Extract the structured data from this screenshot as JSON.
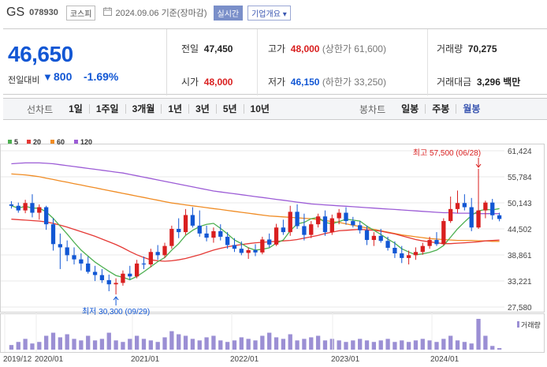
{
  "header": {
    "stock_name": "GS",
    "stock_code": "078930",
    "market_badge": "코스피",
    "date_text": "2024.09.06 기준(장마감)",
    "realtime_button": "실시간",
    "corp_overview_button": "기업개요 ▾"
  },
  "quote": {
    "price": "46,650",
    "change_label": "전일대비",
    "change_arrow": "▼",
    "change_value": "800",
    "change_percent": "-1.69%",
    "prev_close_label": "전일",
    "prev_close": "47,450",
    "high_label": "고가",
    "high": "48,000",
    "upper_limit": "(상한가 61,600)",
    "volume_label": "거래량",
    "volume": "70,275",
    "open_label": "시가",
    "open": "48,000",
    "low_label": "저가",
    "low": "46,150",
    "lower_limit": "(하한가 33,250)",
    "amount_label": "거래대금",
    "amount": "3,296 백만"
  },
  "period_bar": {
    "line_label": "선차트",
    "line_periods": [
      "1일",
      "1주일",
      "3개월",
      "1년",
      "3년",
      "5년",
      "10년"
    ],
    "candle_label": "봉차트",
    "candle_periods": [
      "일봉",
      "주봉",
      "월봉"
    ],
    "active_candle": "월봉"
  },
  "colors": {
    "up": "#d91f1f",
    "down": "#1257d4",
    "ma5": "#4caf50",
    "ma20": "#e53935",
    "ma60": "#f08c24",
    "ma120": "#9c5cd6",
    "volume": "#9b8fd4"
  },
  "chart_data": {
    "type": "candlestick",
    "legend": [
      "5",
      "20",
      "60",
      "120"
    ],
    "y_ticks": [
      "61,424",
      "55,784",
      "50,143",
      "44,502",
      "38,861",
      "33,221",
      "27,580"
    ],
    "y_range": [
      27580,
      61424
    ],
    "x_ticks": [
      "2019/12",
      "2020/01",
      "2021/01",
      "2022/01",
      "2023/01",
      "2024/01"
    ],
    "volume_label": "거래량",
    "annotations": {
      "high_text": "최고 57,500 (06/28)",
      "low_text": "최저 30,300 (09/29)"
    },
    "candles": [
      [
        49800,
        50500,
        48900,
        49500
      ],
      [
        49500,
        50200,
        48000,
        48500
      ],
      [
        48500,
        50800,
        47900,
        50100
      ],
      [
        50100,
        52000,
        47000,
        48000
      ],
      [
        48000,
        49800,
        46500,
        49200
      ],
      [
        49200,
        49500,
        44300,
        45500
      ],
      [
        45500,
        46800,
        39800,
        41200
      ],
      [
        41200,
        43500,
        35800,
        40500
      ],
      [
        40500,
        42000,
        37500,
        38800
      ],
      [
        38800,
        40500,
        36800,
        37900
      ],
      [
        37900,
        39200,
        35500,
        37000
      ],
      [
        37000,
        38500,
        34800,
        35200
      ],
      [
        35200,
        36500,
        33200,
        34500
      ],
      [
        34500,
        35800,
        32800,
        33400
      ],
      [
        33400,
        34600,
        31000,
        32500
      ],
      [
        32500,
        33800,
        30300,
        32800
      ],
      [
        32800,
        35500,
        32200,
        34800
      ],
      [
        34800,
        36500,
        33500,
        34200
      ],
      [
        34200,
        37800,
        33800,
        37000
      ],
      [
        37000,
        38500,
        35800,
        36800
      ],
      [
        36800,
        40200,
        36200,
        39500
      ],
      [
        39500,
        41000,
        37800,
        38800
      ],
      [
        38800,
        41500,
        38200,
        40800
      ],
      [
        40800,
        45200,
        40200,
        44500
      ],
      [
        44500,
        46800,
        42500,
        43800
      ],
      [
        43800,
        48800,
        43200,
        47500
      ],
      [
        47500,
        49200,
        44800,
        45200
      ],
      [
        45200,
        48500,
        42800,
        43500
      ],
      [
        43500,
        45200,
        41800,
        42600
      ],
      [
        42600,
        44800,
        41500,
        44000
      ],
      [
        44000,
        45500,
        42000,
        42800
      ],
      [
        42800,
        43800,
        40200,
        41000
      ],
      [
        41000,
        42500,
        39500,
        40200
      ],
      [
        40200,
        41800,
        38800,
        39300
      ],
      [
        39300,
        40500,
        38000,
        39900
      ],
      [
        39900,
        41200,
        38600,
        39400
      ],
      [
        39400,
        42800,
        39000,
        42200
      ],
      [
        42200,
        43500,
        40500,
        41100
      ],
      [
        41100,
        45600,
        40800,
        44800
      ],
      [
        44800,
        46500,
        43200,
        43800
      ],
      [
        43800,
        49500,
        43000,
        48200
      ],
      [
        48200,
        49800,
        44500,
        45100
      ],
      [
        45100,
        47800,
        42000,
        43200
      ],
      [
        43200,
        46200,
        42500,
        45500
      ],
      [
        45500,
        47800,
        44800,
        47200
      ],
      [
        47200,
        48500,
        43000,
        43800
      ],
      [
        43800,
        47600,
        43200,
        46800
      ],
      [
        46800,
        48800,
        45500,
        48000
      ],
      [
        48000,
        49200,
        45400,
        46200
      ],
      [
        46200,
        47100,
        44800,
        45300
      ],
      [
        45300,
        46200,
        43500,
        44200
      ],
      [
        44200,
        45200,
        41000,
        42100
      ],
      [
        42100,
        43800,
        40800,
        43000
      ],
      [
        43000,
        44500,
        41500,
        41900
      ],
      [
        41900,
        42800,
        39800,
        40400
      ],
      [
        40400,
        41800,
        38200,
        39200
      ],
      [
        39200,
        40800,
        37100,
        38200
      ],
      [
        38200,
        39800,
        36800,
        38800
      ],
      [
        38800,
        40500,
        37800,
        39500
      ],
      [
        39500,
        41500,
        38900,
        40800
      ],
      [
        40800,
        42800,
        40200,
        42100
      ],
      [
        42100,
        43800,
        40800,
        41200
      ],
      [
        41200,
        46800,
        40900,
        46200
      ],
      [
        46200,
        51500,
        45800,
        48800
      ],
      [
        48800,
        52800,
        47900,
        50100
      ],
      [
        50100,
        52000,
        48500,
        49200
      ],
      [
        49200,
        51200,
        44000,
        44800
      ],
      [
        44800,
        57500,
        44500,
        48500
      ],
      [
        48500,
        50600,
        46800,
        50200
      ],
      [
        50200,
        51000,
        46500,
        47450
      ],
      [
        47450,
        48000,
        46150,
        46650
      ]
    ],
    "ma5": [
      49500,
      49000,
      49400,
      49000,
      49000,
      48200,
      46800,
      45100,
      43400,
      41600,
      39900,
      38600,
      37300,
      36300,
      35300,
      34400,
      34000,
      33500,
      34200,
      35200,
      36300,
      37400,
      38300,
      39900,
      41300,
      43100,
      44200,
      45000,
      45500,
      45700,
      44600,
      43400,
      42100,
      41300,
      40400,
      39900,
      40100,
      40400,
      41400,
      42100,
      44100,
      45600,
      45900,
      46700,
      47000,
      45900,
      45600,
      46100,
      46600,
      46400,
      46200,
      45100,
      44200,
      43300,
      42300,
      41400,
      40200,
      39500,
      38900,
      39100,
      39400,
      39900,
      40900,
      42700,
      44500,
      46000,
      47400,
      48400,
      48700,
      48600,
      48900
    ],
    "ma20": [
      46600,
      46500,
      46400,
      46300,
      46200,
      46000,
      45700,
      45300,
      44900,
      44400,
      43900,
      43400,
      42900,
      42300,
      41700,
      41100,
      40400,
      39600,
      38900,
      38300,
      37800,
      37600,
      37500,
      37600,
      37800,
      38100,
      38500,
      38900,
      39400,
      39900,
      40300,
      40600,
      40900,
      41100,
      41300,
      41500,
      41600,
      41700,
      41800,
      41900,
      42000,
      42200,
      42500,
      42800,
      43100,
      43500,
      43800,
      44100,
      44200,
      44300,
      44400,
      44300,
      44200,
      44000,
      43700,
      43400,
      43000,
      42600,
      42200,
      41900,
      41700,
      41500,
      41300,
      41300,
      41400,
      41500,
      41600,
      41700,
      41900,
      42000,
      42100
    ],
    "ma60": [
      56400,
      56300,
      56200,
      56000,
      55800,
      55500,
      55200,
      54900,
      54600,
      54300,
      54000,
      53700,
      53400,
      53100,
      52800,
      52500,
      52200,
      51900,
      51600,
      51300,
      51000,
      50700,
      50400,
      50100,
      49900,
      49700,
      49500,
      49300,
      49100,
      48900,
      48700,
      48500,
      48300,
      48100,
      47900,
      47700,
      47500,
      47300,
      47200,
      47100,
      47000,
      46900,
      46800,
      46700,
      46500,
      46300,
      46100,
      45900,
      45600,
      45300,
      45000,
      44700,
      44400,
      44100,
      43800,
      43500,
      43200,
      43000,
      42800,
      42600,
      42400,
      42300,
      42200,
      42100,
      42000,
      42000,
      42000,
      41900,
      41900,
      41800,
      41800
    ],
    "ma120": [
      58600,
      58700,
      58800,
      58800,
      58800,
      58700,
      58600,
      58400,
      58200,
      58000,
      57800,
      57600,
      57400,
      57200,
      57000,
      56800,
      56600,
      56300,
      56000,
      55700,
      55400,
      55100,
      54800,
      54500,
      54200,
      53900,
      53600,
      53300,
      53000,
      52700,
      52500,
      52300,
      52100,
      51900,
      51700,
      51500,
      51300,
      51100,
      50900,
      50700,
      50500,
      50300,
      50100,
      49900,
      49800,
      49700,
      49600,
      49500,
      49400,
      49300,
      49200,
      49100,
      49000,
      48900,
      48800,
      48700,
      48600,
      48500,
      48400,
      48300,
      48200,
      48100,
      48000,
      48000,
      47900,
      47900,
      47900,
      47800,
      47800,
      47800,
      47800
    ],
    "volume": [
      0.15,
      0.25,
      0.35,
      0.2,
      0.25,
      0.45,
      0.55,
      0.4,
      0.5,
      0.35,
      0.3,
      0.45,
      0.3,
      0.35,
      0.55,
      0.3,
      0.25,
      0.35,
      0.45,
      0.35,
      0.3,
      0.25,
      0.4,
      0.6,
      0.5,
      0.45,
      0.35,
      0.3,
      0.4,
      0.45,
      0.3,
      0.25,
      0.3,
      0.4,
      0.35,
      0.3,
      0.45,
      0.55,
      0.4,
      0.35,
      0.5,
      0.3,
      0.35,
      0.4,
      0.45,
      0.3,
      0.35,
      0.3,
      0.25,
      0.3,
      0.35,
      0.3,
      0.25,
      0.3,
      0.35,
      0.25,
      0.3,
      0.25,
      0.3,
      0.35,
      0.3,
      0.25,
      0.35,
      0.45,
      0.3,
      0.25,
      0.2,
      1.0,
      0.45,
      0.12,
      0.05
    ]
  }
}
